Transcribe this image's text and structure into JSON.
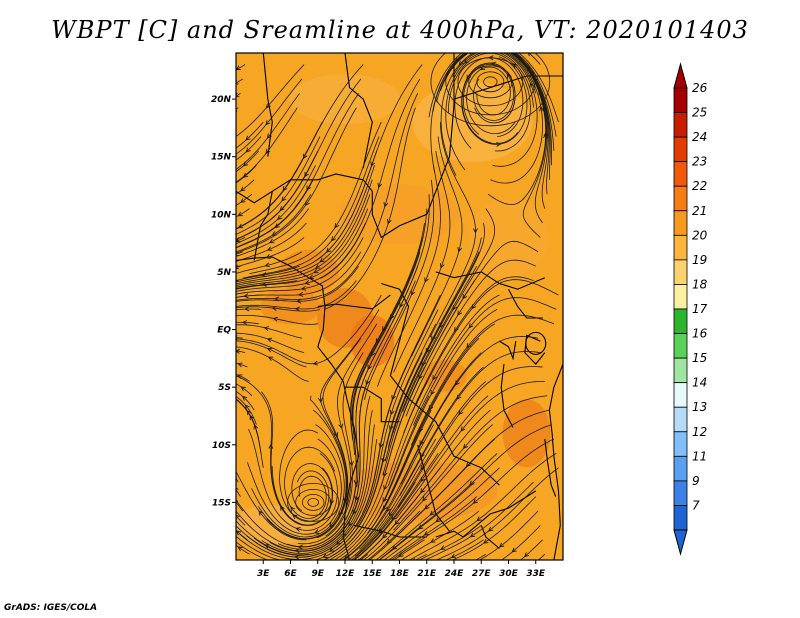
{
  "title": "WBPT [C] and Sreamline at 400hPa, VT: 2020101403",
  "footer": "GrADS: IGES/COLA",
  "map": {
    "lon_range": [
      0,
      36
    ],
    "lat_range": [
      -20,
      24
    ],
    "lat_labels": [
      "20N",
      "15N",
      "10N",
      "5N",
      "EQ",
      "5S",
      "10S",
      "15S"
    ],
    "lat_values": [
      20,
      15,
      10,
      5,
      0,
      -5,
      -10,
      -15
    ],
    "lon_labels": [
      "3E",
      "6E",
      "9E",
      "12E",
      "15E",
      "18E",
      "21E",
      "24E",
      "27E",
      "30E",
      "33E"
    ],
    "lon_values": [
      3,
      6,
      9,
      12,
      15,
      18,
      21,
      24,
      27,
      30,
      33
    ],
    "background_color": "#f6a623",
    "cyclone_centers": [
      {
        "lon": 28,
        "lat": 21.5,
        "label": "anticyclone"
      },
      {
        "lon": 8.5,
        "lat": -15,
        "label": "cyclone"
      }
    ]
  },
  "colorbar": {
    "labels": [
      "26",
      "25",
      "24",
      "23",
      "22",
      "21",
      "20",
      "19",
      "18",
      "17",
      "16",
      "15",
      "14",
      "13",
      "12",
      "11",
      "9",
      "7"
    ],
    "colors": [
      "#a50000",
      "#c81e00",
      "#e23c00",
      "#f05a0a",
      "#f57d14",
      "#f89a1e",
      "#fbb43c",
      "#fcd26e",
      "#fbf0a0",
      "#2db42d",
      "#5ad25a",
      "#a0e6a0",
      "#e6fafa",
      "#b4dcfa",
      "#82befa",
      "#5aa0f0",
      "#3c82e6",
      "#1e64d2"
    ],
    "top_arrow_color": "#a50000",
    "bottom_arrow_color": "#1e64d2"
  }
}
